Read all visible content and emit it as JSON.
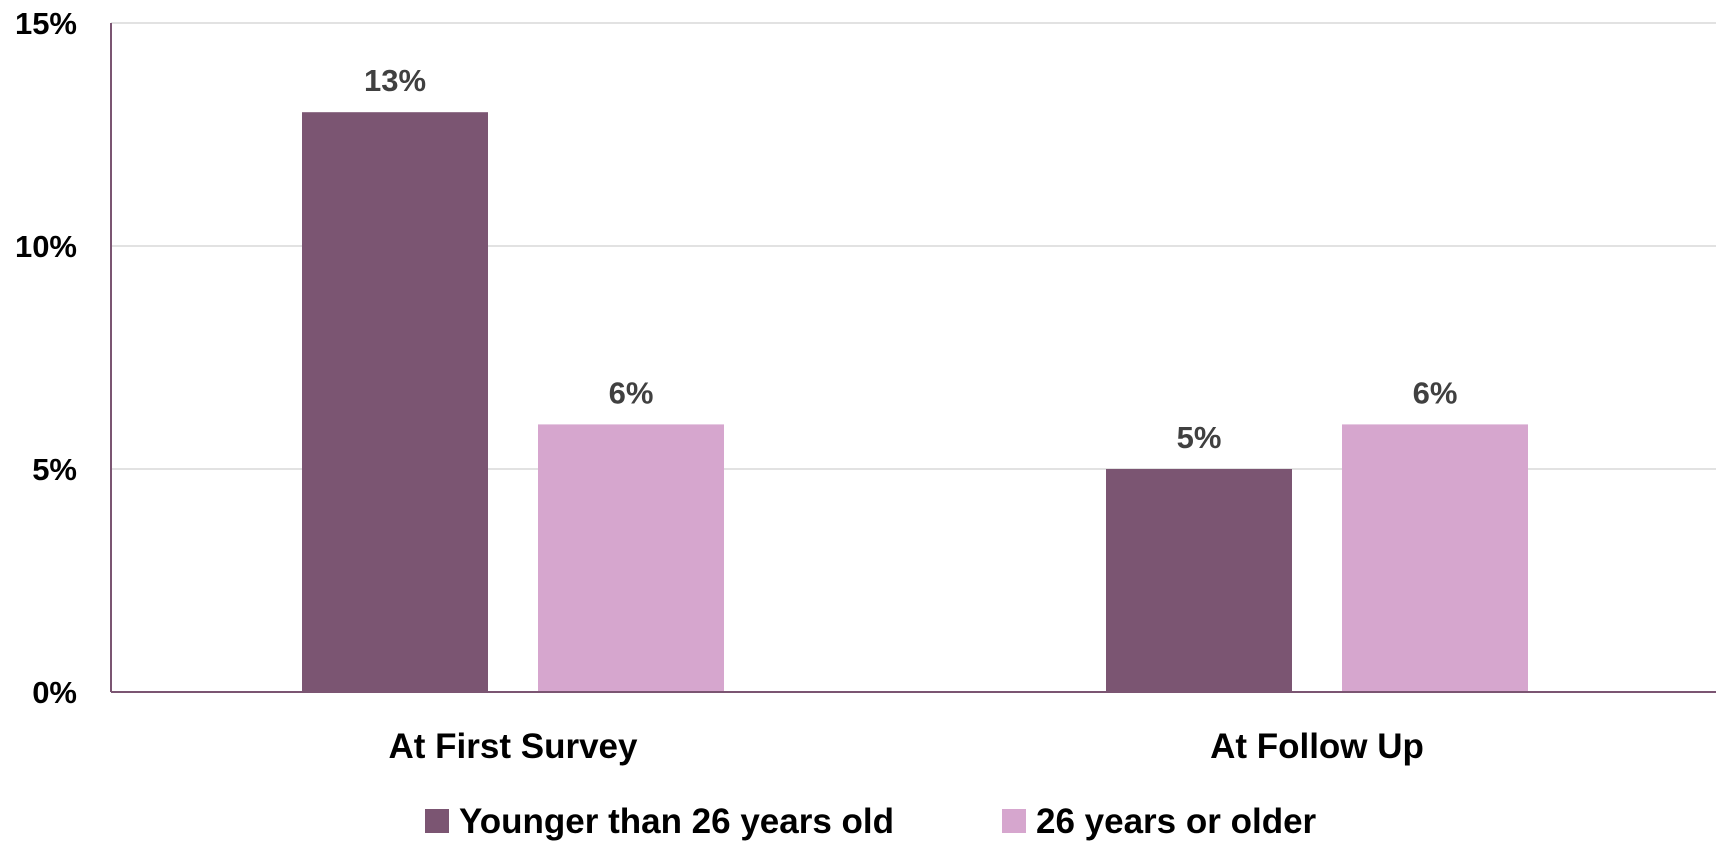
{
  "chart_data": {
    "type": "bar",
    "title": "",
    "xlabel": "",
    "ylabel": "",
    "categories": [
      "At First Survey",
      "At Follow Up"
    ],
    "series": [
      {
        "name": "Younger than 26 years old",
        "values": [
          13,
          5
        ],
        "labels": [
          "13%",
          "5%"
        ],
        "color": "#7b5572"
      },
      {
        "name": "26 years or older",
        "values": [
          6,
          6
        ],
        "labels": [
          "6%",
          "6%"
        ],
        "color": "#d6a6ce"
      }
    ],
    "y_ticks": [
      {
        "value": 0,
        "label": "0%"
      },
      {
        "value": 5,
        "label": "5%"
      },
      {
        "value": 10,
        "label": "10%"
      },
      {
        "value": 15,
        "label": "15%"
      }
    ],
    "ylim": [
      0,
      15
    ],
    "grid": true,
    "legend_position": "bottom",
    "colors": {
      "axis": "#7b5572",
      "grid": "#d9d9d9",
      "data_label": "#404040",
      "text": "#000000"
    }
  }
}
